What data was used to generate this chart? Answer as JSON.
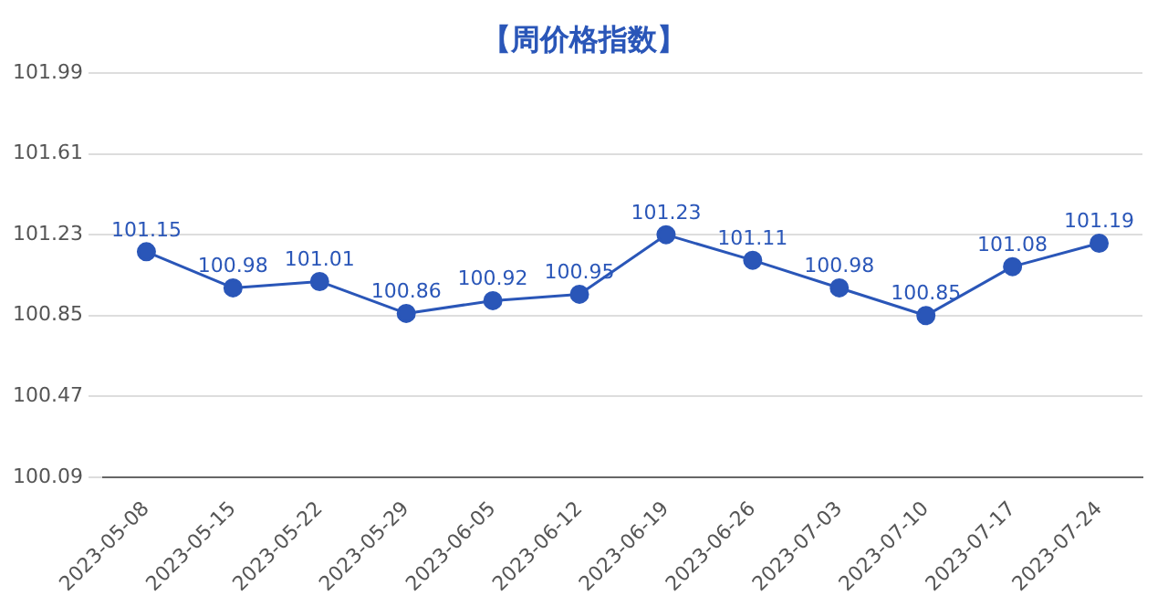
{
  "chart_data": {
    "type": "line",
    "title": "【周价格指数】",
    "categories": [
      "2023-05-08",
      "2023-05-15",
      "2023-05-22",
      "2023-05-29",
      "2023-06-05",
      "2023-06-12",
      "2023-06-19",
      "2023-06-26",
      "2023-07-03",
      "2023-07-10",
      "2023-07-17",
      "2023-07-24"
    ],
    "series": [
      {
        "color": "#2a56b8",
        "values": [
          101.15,
          100.98,
          101.01,
          100.86,
          100.92,
          100.95,
          101.23,
          101.11,
          100.98,
          100.85,
          101.08,
          101.19
        ]
      }
    ],
    "ylim": [
      100.09,
      101.99
    ],
    "yticks": [
      100.09,
      100.47,
      100.85,
      101.23,
      101.61,
      101.99
    ],
    "grid": "y",
    "legend": false,
    "marker": "circle",
    "line_style": "solid",
    "data_labels": true
  }
}
